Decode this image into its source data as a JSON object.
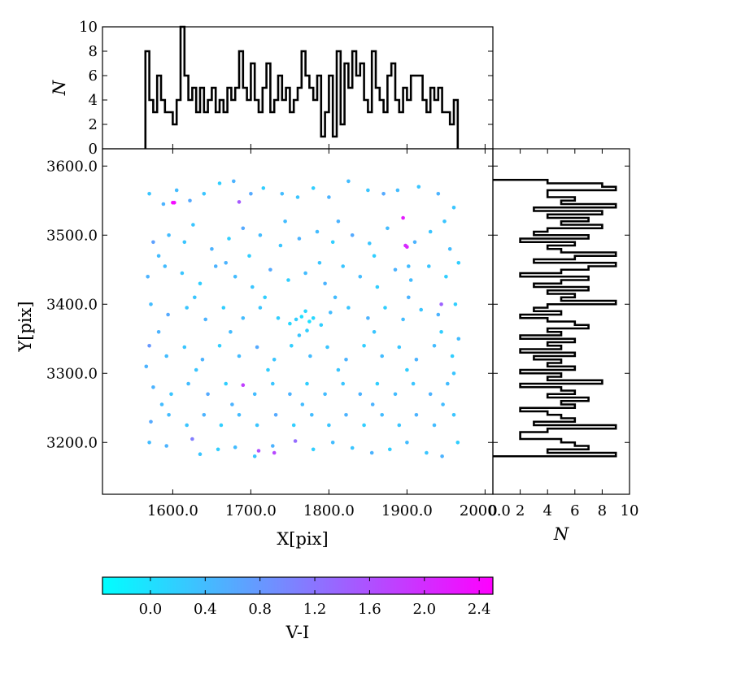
{
  "chart_data": [
    {
      "id": "scatter",
      "type": "scatter",
      "xlabel": "X[pix]",
      "ylabel": "Y[pix]",
      "xlim": [
        1510,
        2010
      ],
      "ylim": [
        3125,
        3625
      ],
      "xticks": [
        1600,
        1700,
        1800,
        1900,
        2000
      ],
      "yticks": [
        3200,
        3300,
        3400,
        3500,
        3600
      ],
      "xtick_labels": [
        "1600.0",
        "1700.0",
        "1800.0",
        "1900.0",
        "2000.0"
      ],
      "ytick_labels": [
        "3200.0",
        "3300.0",
        "3400.0",
        "3500.0",
        "3600.0"
      ],
      "points": [
        [
          1570,
          3560,
          0.3
        ],
        [
          1588,
          3545,
          0.5
        ],
        [
          1605,
          3565,
          0.4
        ],
        [
          1622,
          3550,
          0.6
        ],
        [
          1640,
          3560,
          0.3
        ],
        [
          1660,
          3575,
          0.2
        ],
        [
          1678,
          3578,
          0.5
        ],
        [
          1700,
          3560,
          0.6
        ],
        [
          1716,
          3568,
          0.2
        ],
        [
          1740,
          3560,
          0.4
        ],
        [
          1760,
          3555,
          0.3
        ],
        [
          1780,
          3568,
          0.2
        ],
        [
          1800,
          3555,
          0.5
        ],
        [
          1825,
          3578,
          0.4
        ],
        [
          1850,
          3565,
          0.3
        ],
        [
          1870,
          3560,
          0.6
        ],
        [
          1888,
          3565,
          0.4
        ],
        [
          1915,
          3570,
          0.3
        ],
        [
          1940,
          3560,
          0.5
        ],
        [
          1960,
          3540,
          0.3
        ],
        [
          1602,
          3547,
          2.3
        ],
        [
          1685,
          3548,
          1.5
        ],
        [
          1895,
          3525,
          2.2
        ],
        [
          1898,
          3485,
          2.0
        ],
        [
          1900,
          3483,
          2.1
        ],
        [
          1944,
          3400,
          1.4
        ],
        [
          1690,
          3283,
          1.8
        ],
        [
          1730,
          3185,
          1.7
        ],
        [
          1710,
          3188,
          1.6
        ],
        [
          1757,
          3202,
          1.3
        ],
        [
          1625,
          3205,
          1.1
        ],
        [
          1600,
          3547,
          2.4
        ],
        [
          1575,
          3490,
          0.7
        ],
        [
          1595,
          3500,
          0.4
        ],
        [
          1615,
          3490,
          0.3
        ],
        [
          1650,
          3480,
          0.5
        ],
        [
          1672,
          3495,
          0.2
        ],
        [
          1690,
          3510,
          0.6
        ],
        [
          1712,
          3500,
          0.4
        ],
        [
          1738,
          3485,
          0.3
        ],
        [
          1762,
          3495,
          0.5
        ],
        [
          1785,
          3505,
          0.4
        ],
        [
          1805,
          3490,
          0.2
        ],
        [
          1830,
          3500,
          0.6
        ],
        [
          1852,
          3488,
          0.3
        ],
        [
          1875,
          3510,
          0.4
        ],
        [
          1910,
          3490,
          0.5
        ],
        [
          1930,
          3505,
          0.3
        ],
        [
          1955,
          3480,
          0.4
        ],
        [
          1568,
          3440,
          0.5
        ],
        [
          1590,
          3455,
          0.4
        ],
        [
          1612,
          3445,
          0.3
        ],
        [
          1635,
          3430,
          0.2
        ],
        [
          1655,
          3455,
          0.5
        ],
        [
          1680,
          3440,
          0.4
        ],
        [
          1702,
          3425,
          0.3
        ],
        [
          1725,
          3450,
          0.6
        ],
        [
          1748,
          3435,
          0.2
        ],
        [
          1770,
          3445,
          0.4
        ],
        [
          1795,
          3430,
          0.5
        ],
        [
          1818,
          3455,
          0.3
        ],
        [
          1840,
          3440,
          0.4
        ],
        [
          1862,
          3425,
          0.2
        ],
        [
          1885,
          3450,
          0.5
        ],
        [
          1905,
          3435,
          0.4
        ],
        [
          1928,
          3455,
          0.3
        ],
        [
          1950,
          3440,
          0.2
        ],
        [
          1572,
          3400,
          0.4
        ],
        [
          1594,
          3385,
          0.6
        ],
        [
          1618,
          3395,
          0.3
        ],
        [
          1642,
          3378,
          0.5
        ],
        [
          1665,
          3395,
          0.2
        ],
        [
          1690,
          3380,
          0.4
        ],
        [
          1712,
          3395,
          0.3
        ],
        [
          1735,
          3380,
          0.2
        ],
        [
          1750,
          3372,
          0.1
        ],
        [
          1758,
          3378,
          0.2
        ],
        [
          1765,
          3382,
          0.0
        ],
        [
          1770,
          3390,
          0.1
        ],
        [
          1775,
          3375,
          0.0
        ],
        [
          1780,
          3380,
          0.1
        ],
        [
          1772,
          3362,
          0.2
        ],
        [
          1762,
          3355,
          0.3
        ],
        [
          1790,
          3370,
          0.2
        ],
        [
          1802,
          3388,
          0.4
        ],
        [
          1825,
          3395,
          0.3
        ],
        [
          1850,
          3380,
          0.5
        ],
        [
          1872,
          3395,
          0.2
        ],
        [
          1895,
          3378,
          0.4
        ],
        [
          1918,
          3392,
          0.3
        ],
        [
          1940,
          3385,
          0.5
        ],
        [
          1962,
          3400,
          0.2
        ],
        [
          1570,
          3340,
          0.8
        ],
        [
          1592,
          3325,
          0.4
        ],
        [
          1615,
          3338,
          0.3
        ],
        [
          1638,
          3320,
          0.5
        ],
        [
          1660,
          3340,
          0.2
        ],
        [
          1685,
          3325,
          0.4
        ],
        [
          1708,
          3338,
          0.6
        ],
        [
          1730,
          3320,
          0.3
        ],
        [
          1752,
          3340,
          0.2
        ],
        [
          1776,
          3325,
          0.4
        ],
        [
          1798,
          3338,
          0.3
        ],
        [
          1822,
          3320,
          0.5
        ],
        [
          1845,
          3340,
          0.2
        ],
        [
          1868,
          3325,
          0.4
        ],
        [
          1890,
          3338,
          0.3
        ],
        [
          1912,
          3320,
          0.5
        ],
        [
          1935,
          3340,
          0.4
        ],
        [
          1958,
          3325,
          0.2
        ],
        [
          1575,
          3280,
          0.5
        ],
        [
          1598,
          3270,
          0.3
        ],
        [
          1620,
          3285,
          0.4
        ],
        [
          1645,
          3270,
          0.6
        ],
        [
          1668,
          3285,
          0.2
        ],
        [
          1705,
          3270,
          0.4
        ],
        [
          1728,
          3285,
          0.3
        ],
        [
          1750,
          3270,
          0.5
        ],
        [
          1772,
          3285,
          0.2
        ],
        [
          1795,
          3270,
          0.4
        ],
        [
          1818,
          3285,
          0.3
        ],
        [
          1840,
          3270,
          0.5
        ],
        [
          1862,
          3285,
          0.2
        ],
        [
          1885,
          3270,
          0.4
        ],
        [
          1908,
          3285,
          0.3
        ],
        [
          1930,
          3270,
          0.5
        ],
        [
          1952,
          3285,
          0.4
        ],
        [
          1572,
          3230,
          0.6
        ],
        [
          1595,
          3240,
          0.4
        ],
        [
          1618,
          3225,
          0.3
        ],
        [
          1640,
          3240,
          0.5
        ],
        [
          1662,
          3225,
          0.2
        ],
        [
          1685,
          3240,
          0.4
        ],
        [
          1708,
          3225,
          0.3
        ],
        [
          1732,
          3240,
          0.6
        ],
        [
          1755,
          3225,
          0.2
        ],
        [
          1778,
          3240,
          0.4
        ],
        [
          1800,
          3225,
          0.3
        ],
        [
          1822,
          3240,
          0.5
        ],
        [
          1845,
          3225,
          0.2
        ],
        [
          1868,
          3240,
          0.4
        ],
        [
          1890,
          3225,
          0.3
        ],
        [
          1912,
          3240,
          0.5
        ],
        [
          1935,
          3225,
          0.4
        ],
        [
          1960,
          3240,
          0.3
        ],
        [
          1570,
          3200,
          0.4
        ],
        [
          1592,
          3195,
          0.5
        ],
        [
          1635,
          3183,
          0.3
        ],
        [
          1658,
          3190,
          0.2
        ],
        [
          1680,
          3193,
          0.4
        ],
        [
          1705,
          3180,
          0.3
        ],
        [
          1728,
          3195,
          0.5
        ],
        [
          1780,
          3190,
          0.2
        ],
        [
          1805,
          3200,
          0.4
        ],
        [
          1830,
          3192,
          0.3
        ],
        [
          1855,
          3185,
          0.5
        ],
        [
          1878,
          3190,
          0.2
        ],
        [
          1900,
          3200,
          0.4
        ],
        [
          1925,
          3185,
          0.3
        ],
        [
          1945,
          3180,
          0.5
        ],
        [
          1965,
          3200,
          0.2
        ],
        [
          1582,
          3470,
          0.4
        ],
        [
          1626,
          3515,
          0.3
        ],
        [
          1668,
          3460,
          0.5
        ],
        [
          1698,
          3470,
          0.2
        ],
        [
          1744,
          3520,
          0.4
        ],
        [
          1788,
          3460,
          0.3
        ],
        [
          1812,
          3520,
          0.5
        ],
        [
          1858,
          3470,
          0.2
        ],
        [
          1902,
          3455,
          0.4
        ],
        [
          1948,
          3520,
          0.3
        ],
        [
          1582,
          3360,
          0.5
        ],
        [
          1628,
          3410,
          0.3
        ],
        [
          1674,
          3360,
          0.4
        ],
        [
          1718,
          3410,
          0.2
        ],
        [
          1808,
          3410,
          0.4
        ],
        [
          1858,
          3360,
          0.3
        ],
        [
          1902,
          3410,
          0.5
        ],
        [
          1944,
          3360,
          0.2
        ],
        [
          1586,
          3255,
          0.4
        ],
        [
          1630,
          3305,
          0.3
        ],
        [
          1676,
          3255,
          0.5
        ],
        [
          1722,
          3305,
          0.2
        ],
        [
          1766,
          3255,
          0.4
        ],
        [
          1812,
          3305,
          0.3
        ],
        [
          1856,
          3255,
          0.5
        ],
        [
          1900,
          3305,
          0.2
        ],
        [
          1946,
          3255,
          0.4
        ],
        [
          1960,
          3300,
          0.3
        ],
        [
          1566,
          3310,
          0.5
        ],
        [
          1966,
          3350,
          0.4
        ],
        [
          1966,
          3460,
          0.2
        ]
      ],
      "colorbar": {
        "label": "V-I",
        "range": [
          -0.35,
          2.5
        ],
        "ticks": [
          0.0,
          0.4,
          0.8,
          1.2,
          1.6,
          2.0,
          2.4
        ],
        "tick_labels": [
          "0.0",
          "0.4",
          "0.8",
          "1.2",
          "1.6",
          "2.0",
          "2.4"
        ],
        "color_low": "#00ffff",
        "color_high": "#ff00ff"
      }
    },
    {
      "id": "top_histogram",
      "type": "bar",
      "style": "step",
      "ylabel": "N",
      "xlim": [
        1510,
        2010
      ],
      "ylim": [
        0,
        10
      ],
      "yticks": [
        0,
        2,
        4,
        6,
        8,
        10
      ],
      "ytick_labels": [
        "0",
        "2",
        "4",
        "6",
        "8",
        "10"
      ],
      "bin_edges": [
        1565,
        1570,
        1575,
        1580,
        1585,
        1590,
        1595,
        1600,
        1605,
        1610,
        1615,
        1620,
        1625,
        1630,
        1635,
        1640,
        1645,
        1650,
        1655,
        1660,
        1665,
        1670,
        1675,
        1680,
        1685,
        1690,
        1695,
        1700,
        1705,
        1710,
        1715,
        1720,
        1725,
        1730,
        1735,
        1740,
        1745,
        1750,
        1755,
        1760,
        1765,
        1770,
        1775,
        1780,
        1785,
        1790,
        1795,
        1800,
        1805,
        1810,
        1815,
        1820,
        1825,
        1830,
        1835,
        1840,
        1845,
        1850,
        1855,
        1860,
        1865,
        1870,
        1875,
        1880,
        1885,
        1890,
        1895,
        1900,
        1905,
        1910,
        1915,
        1920,
        1925,
        1930,
        1935,
        1940,
        1945,
        1950,
        1955,
        1960,
        1965
      ],
      "counts": [
        8,
        4,
        3,
        6,
        4,
        3,
        3,
        2,
        4,
        10,
        6,
        4,
        5,
        3,
        5,
        3,
        4,
        5,
        3,
        4,
        3,
        5,
        4,
        5,
        8,
        5,
        4,
        7,
        4,
        3,
        5,
        7,
        3,
        4,
        6,
        4,
        5,
        3,
        4,
        5,
        8,
        6,
        5,
        4,
        6,
        1,
        3,
        6,
        1,
        8,
        2,
        7,
        5,
        8,
        6,
        7,
        4,
        3,
        8,
        5,
        4,
        3,
        6,
        7,
        4,
        3,
        5,
        4,
        6,
        6,
        6,
        4,
        3,
        5,
        4,
        5,
        3,
        3,
        2,
        4
      ],
      "ytick_extra": []
    },
    {
      "id": "right_histogram",
      "type": "bar",
      "style": "step",
      "orientation": "horizontal",
      "xlabel": "N",
      "xlim": [
        0,
        10
      ],
      "ylim": [
        3125,
        3625
      ],
      "xticks": [
        0,
        2,
        4,
        6,
        8,
        10
      ],
      "xtick_labels": [
        "0",
        "2",
        "4",
        "6",
        "8",
        "10"
      ],
      "bin_edges": [
        3180,
        3185,
        3190,
        3195,
        3200,
        3205,
        3210,
        3215,
        3220,
        3225,
        3230,
        3235,
        3240,
        3245,
        3250,
        3255,
        3260,
        3265,
        3270,
        3275,
        3280,
        3285,
        3290,
        3295,
        3300,
        3305,
        3310,
        3315,
        3320,
        3325,
        3330,
        3335,
        3340,
        3345,
        3350,
        3355,
        3360,
        3365,
        3370,
        3375,
        3380,
        3385,
        3390,
        3395,
        3400,
        3405,
        3410,
        3415,
        3420,
        3425,
        3430,
        3435,
        3440,
        3445,
        3450,
        3455,
        3460,
        3465,
        3470,
        3475,
        3480,
        3485,
        3490,
        3495,
        3500,
        3505,
        3510,
        3515,
        3520,
        3525,
        3530,
        3535,
        3540,
        3545,
        3550,
        3555,
        3560,
        3565,
        3570,
        3575,
        3580
      ],
      "counts": [
        9,
        4,
        7,
        6,
        5,
        2,
        2,
        4,
        9,
        3,
        6,
        5,
        4,
        2,
        6,
        5,
        7,
        4,
        6,
        5,
        2,
        8,
        4,
        5,
        2,
        6,
        4,
        5,
        3,
        6,
        2,
        5,
        4,
        6,
        2,
        5,
        4,
        7,
        6,
        4,
        2,
        5,
        3,
        4,
        9,
        5,
        6,
        4,
        7,
        3,
        5,
        7,
        2,
        5,
        7,
        9,
        3,
        6,
        9,
        5,
        4,
        6,
        2,
        7,
        3,
        4,
        8,
        5,
        7,
        4,
        8,
        3,
        9,
        5,
        6,
        4,
        4,
        9,
        8,
        4
      ],
      "ytick_extra": []
    }
  ]
}
